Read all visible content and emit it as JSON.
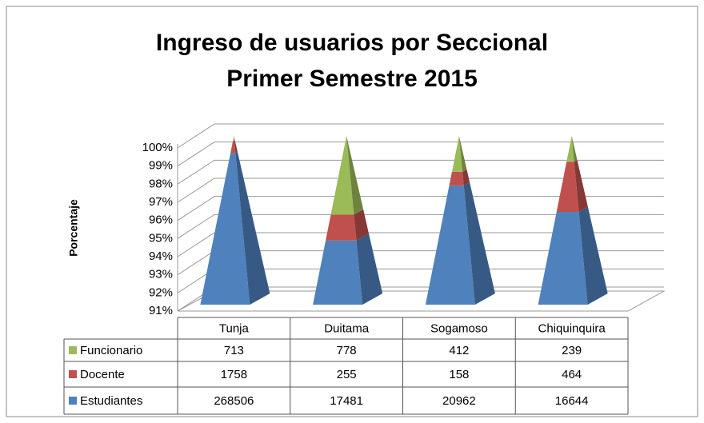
{
  "chart_data": {
    "type": "pyramid100",
    "title": [
      "Ingreso de usuarios por Seccional",
      "Primer Semestre 2015"
    ],
    "ylabel": "Porcentaje",
    "categories": [
      "Tunja",
      "Duitama",
      "Sogamoso",
      "Chiquinquira"
    ],
    "series": [
      {
        "name": "Funcionario",
        "color": "#9bbb59",
        "values": [
          713,
          778,
          412,
          239
        ]
      },
      {
        "name": "Docente",
        "color": "#c0504d",
        "values": [
          1758,
          255,
          158,
          464
        ]
      },
      {
        "name": "Estudiantes",
        "color": "#4f81bd",
        "values": [
          268506,
          17481,
          20962,
          16644
        ]
      }
    ],
    "ylim": [
      91,
      100
    ],
    "yticks": [
      {
        "value": 91,
        "label": "91%"
      },
      {
        "value": 92,
        "label": "92%"
      },
      {
        "value": 93,
        "label": "93%"
      },
      {
        "value": 94,
        "label": "94%"
      },
      {
        "value": 95,
        "label": "95%"
      },
      {
        "value": 96,
        "label": "96%"
      },
      {
        "value": 97,
        "label": "97%"
      },
      {
        "value": 98,
        "label": "98%"
      },
      {
        "value": 99,
        "label": "99%"
      },
      {
        "value": 100,
        "label": "100%"
      }
    ],
    "grid": true
  }
}
